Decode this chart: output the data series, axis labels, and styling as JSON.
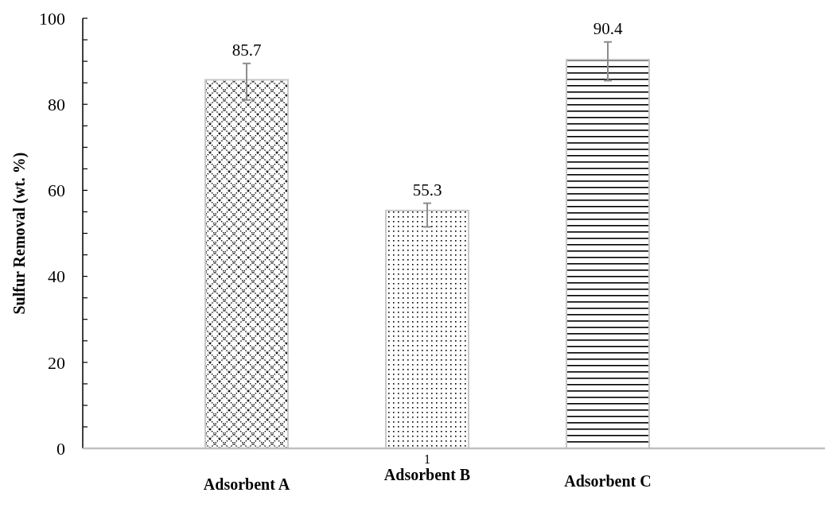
{
  "chart_data": {
    "type": "bar",
    "ylabel": "Sulfur Removal (wt. %)",
    "categories": [
      "Adsorbent A",
      "Adsorbent B",
      "Adsorbent C"
    ],
    "values": [
      85.7,
      55.3,
      90.4
    ],
    "errors": [
      [
        81,
        89.5
      ],
      [
        51.5,
        57
      ],
      [
        85.5,
        94.5
      ]
    ],
    "colors": [
      "#c8c8c8",
      "#c8c8c8",
      "#c8c8c8"
    ],
    "ylim": [
      0,
      100
    ],
    "yticks": [
      0,
      {
        "value": 5,
        "label": null
      },
      {
        "value": 10,
        "label": null
      },
      {
        "value": 15,
        "label": null
      },
      20,
      {
        "value": 25,
        "label": null
      },
      {
        "value": 30,
        "label": null
      },
      {
        "value": 35,
        "label": null
      },
      40,
      {
        "value": 45,
        "label": null
      },
      {
        "value": 50,
        "label": null
      },
      {
        "value": 55,
        "label": null
      },
      60,
      {
        "value": 65,
        "label": null
      },
      {
        "value": 70,
        "label": null
      },
      {
        "value": 75,
        "label": null
      },
      80,
      {
        "value": 85,
        "label": null
      },
      {
        "value": 90,
        "label": null
      },
      {
        "value": 95,
        "label": null
      },
      100
    ],
    "data_labels": true,
    "annotations": [
      "1"
    ]
  }
}
